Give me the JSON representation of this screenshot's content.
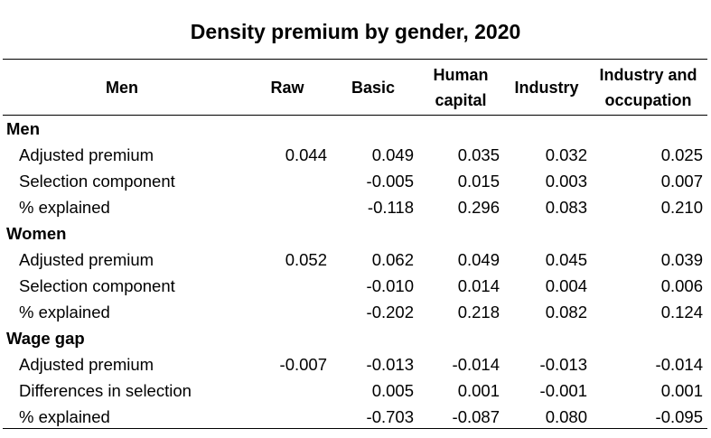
{
  "title": "Density premium by gender, 2020",
  "columns": [
    {
      "label": "Men",
      "align": "center"
    },
    {
      "label": "Raw"
    },
    {
      "label": "Basic"
    },
    {
      "label": "Human\ncapital"
    },
    {
      "label": "Industry"
    },
    {
      "label": "Industry and\noccupation"
    }
  ],
  "groups": [
    {
      "name": "Men",
      "rows": [
        {
          "label": "Adjusted premium",
          "values": [
            "0.044",
            "0.049",
            "0.035",
            "0.032",
            "0.025"
          ]
        },
        {
          "label": "Selection component",
          "values": [
            "",
            "-0.005",
            "0.015",
            "0.003",
            "0.007"
          ]
        },
        {
          "label": "% explained",
          "values": [
            "",
            "-0.118",
            "0.296",
            "0.083",
            "0.210"
          ]
        }
      ]
    },
    {
      "name": "Women",
      "rows": [
        {
          "label": "Adjusted premium",
          "values": [
            "0.052",
            "0.062",
            "0.049",
            "0.045",
            "0.039"
          ]
        },
        {
          "label": "Selection component",
          "values": [
            "",
            "-0.010",
            "0.014",
            "0.004",
            "0.006"
          ]
        },
        {
          "label": "% explained",
          "values": [
            "",
            "-0.202",
            "0.218",
            "0.082",
            "0.124"
          ]
        }
      ]
    },
    {
      "name": "Wage gap",
      "rows": [
        {
          "label": "Adjusted premium",
          "values": [
            "-0.007",
            "-0.013",
            "-0.014",
            "-0.013",
            "-0.014"
          ]
        },
        {
          "label": "Differences in selection",
          "values": [
            "",
            "0.005",
            "0.001",
            "-0.001",
            "0.001"
          ]
        },
        {
          "label": "% explained",
          "values": [
            "",
            "-0.703",
            "-0.087",
            "0.080",
            "-0.095"
          ]
        }
      ]
    }
  ]
}
